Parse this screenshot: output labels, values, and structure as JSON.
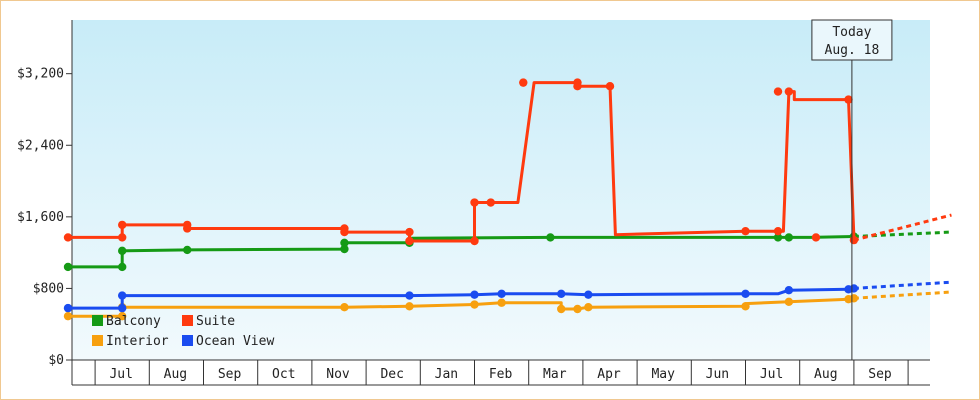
{
  "chart_data": {
    "type": "line",
    "title": "",
    "xlabel": "",
    "ylabel": "",
    "ylim": [
      0,
      3800
    ],
    "yticks": [
      0,
      800,
      1600,
      2400,
      3200
    ],
    "ytick_labels": [
      "$0",
      "$800",
      "$1,600",
      "$2,400",
      "$3,200"
    ],
    "x_unit": "months since June 2023 start",
    "xlim": [
      0,
      16.3
    ],
    "month_labels": [
      {
        "label": "Jul",
        "x": 1
      },
      {
        "label": "Aug",
        "x": 2
      },
      {
        "label": "Sep",
        "x": 3
      },
      {
        "label": "Oct",
        "x": 4
      },
      {
        "label": "Nov",
        "x": 5
      },
      {
        "label": "Dec",
        "x": 6
      },
      {
        "label": "Jan",
        "x": 7
      },
      {
        "label": "Feb",
        "x": 8
      },
      {
        "label": "Mar",
        "x": 9
      },
      {
        "label": "Apr",
        "x": 10
      },
      {
        "label": "May",
        "x": 11
      },
      {
        "label": "Jun",
        "x": 12
      },
      {
        "label": "Jul",
        "x": 13
      },
      {
        "label": "Aug",
        "x": 14
      },
      {
        "label": "Sep",
        "x": 15
      }
    ],
    "today": {
      "line1": "Today",
      "line2": "Aug. 18",
      "x": 14.5
    },
    "legend_position": "bottom-left",
    "grid": false,
    "background_gradient": [
      "#c8ecf8",
      "#f2fafd"
    ],
    "series": [
      {
        "name": "Balcony",
        "color": "#159a15",
        "points": [
          [
            0,
            1040
          ],
          [
            1,
            1040
          ],
          [
            1,
            1220
          ],
          [
            2.2,
            1230
          ],
          [
            5.1,
            1240
          ],
          [
            5.1,
            1310
          ],
          [
            6.3,
            1310
          ],
          [
            6.3,
            1360
          ],
          [
            8.9,
            1370
          ],
          [
            12.5,
            1370
          ],
          [
            12.7,
            1370
          ],
          [
            13.1,
            1370
          ],
          [
            13.7,
            1370
          ],
          [
            13.7,
            1370
          ],
          [
            14.5,
            1380
          ]
        ],
        "markers": [
          [
            0,
            1040
          ],
          [
            1,
            1040
          ],
          [
            1,
            1220
          ],
          [
            2.2,
            1230
          ],
          [
            5.1,
            1240
          ],
          [
            5.1,
            1310
          ],
          [
            6.3,
            1310
          ],
          [
            8.9,
            1370
          ],
          [
            13.1,
            1370
          ],
          [
            13.3,
            1370
          ],
          [
            14.5,
            1380
          ]
        ],
        "forecast": [
          [
            14.5,
            1380
          ],
          [
            16.3,
            1430
          ]
        ]
      },
      {
        "name": "Suite",
        "color": "#ff3a0f",
        "points": [
          [
            0,
            1370
          ],
          [
            1,
            1370
          ],
          [
            1,
            1510
          ],
          [
            2.2,
            1510
          ],
          [
            2.2,
            1470
          ],
          [
            5.1,
            1470
          ],
          [
            5.1,
            1430
          ],
          [
            6.3,
            1430
          ],
          [
            6.3,
            1330
          ],
          [
            7.5,
            1330
          ],
          [
            7.5,
            1760
          ],
          [
            8.3,
            1760
          ],
          [
            8.6,
            3100
          ],
          [
            9.4,
            3100
          ],
          [
            9.4,
            3060
          ],
          [
            10,
            3060
          ],
          [
            10.1,
            1400
          ],
          [
            12.5,
            1440
          ],
          [
            13.2,
            1440
          ],
          [
            13.3,
            3000
          ],
          [
            13.4,
            3000
          ],
          [
            13.4,
            2910
          ],
          [
            14.4,
            2910
          ],
          [
            14.5,
            1370
          ],
          [
            14.5,
            1340
          ]
        ],
        "markers": [
          [
            0,
            1370
          ],
          [
            1,
            1370
          ],
          [
            1,
            1510
          ],
          [
            2.2,
            1510
          ],
          [
            2.2,
            1470
          ],
          [
            5.1,
            1470
          ],
          [
            5.1,
            1430
          ],
          [
            6.3,
            1430
          ],
          [
            6.3,
            1330
          ],
          [
            7.5,
            1330
          ],
          [
            7.5,
            1760
          ],
          [
            7.8,
            1760
          ],
          [
            8.4,
            3100
          ],
          [
            9.4,
            3100
          ],
          [
            9.4,
            3060
          ],
          [
            10,
            3060
          ],
          [
            12.5,
            1440
          ],
          [
            13.1,
            1440
          ],
          [
            13.1,
            3000
          ],
          [
            13.3,
            3000
          ],
          [
            14.4,
            2910
          ],
          [
            13.8,
            1370
          ],
          [
            14.5,
            1340
          ]
        ],
        "forecast": [
          [
            14.5,
            1340
          ],
          [
            16.3,
            1620
          ]
        ]
      },
      {
        "name": "Interior",
        "color": "#f7a00f",
        "points": [
          [
            0,
            490
          ],
          [
            1,
            490
          ],
          [
            1,
            590
          ],
          [
            5.1,
            590
          ],
          [
            6.3,
            600
          ],
          [
            7.5,
            620
          ],
          [
            8,
            640
          ],
          [
            9.1,
            640
          ],
          [
            9.1,
            570
          ],
          [
            9.4,
            570
          ],
          [
            9.6,
            590
          ],
          [
            12.5,
            600
          ],
          [
            12.5,
            630
          ],
          [
            13.3,
            650
          ],
          [
            14.4,
            680
          ],
          [
            14.5,
            690
          ]
        ],
        "markers": [
          [
            0,
            490
          ],
          [
            1,
            490
          ],
          [
            1,
            590
          ],
          [
            5.1,
            590
          ],
          [
            6.3,
            600
          ],
          [
            7.5,
            620
          ],
          [
            8,
            640
          ],
          [
            9.1,
            570
          ],
          [
            9.4,
            570
          ],
          [
            9.6,
            590
          ],
          [
            12.5,
            600
          ],
          [
            13.3,
            650
          ],
          [
            14.4,
            680
          ],
          [
            14.5,
            690
          ]
        ],
        "forecast": [
          [
            14.5,
            690
          ],
          [
            16.3,
            760
          ]
        ]
      },
      {
        "name": "Ocean View",
        "color": "#1a4cf0",
        "points": [
          [
            0,
            580
          ],
          [
            1,
            580
          ],
          [
            1,
            720
          ],
          [
            5.1,
            720
          ],
          [
            6.3,
            720
          ],
          [
            7.5,
            730
          ],
          [
            8,
            740
          ],
          [
            9.1,
            740
          ],
          [
            9.6,
            730
          ],
          [
            12.5,
            740
          ],
          [
            13.1,
            740
          ],
          [
            13.3,
            780
          ],
          [
            14.4,
            790
          ],
          [
            14.5,
            800
          ]
        ],
        "markers": [
          [
            0,
            580
          ],
          [
            1,
            580
          ],
          [
            1,
            720
          ],
          [
            6.3,
            720
          ],
          [
            7.5,
            730
          ],
          [
            8,
            740
          ],
          [
            9.1,
            740
          ],
          [
            9.6,
            730
          ],
          [
            12.5,
            740
          ],
          [
            13.3,
            780
          ],
          [
            14.4,
            790
          ],
          [
            14.5,
            800
          ]
        ],
        "forecast": [
          [
            14.5,
            800
          ],
          [
            16.3,
            870
          ]
        ]
      }
    ]
  }
}
